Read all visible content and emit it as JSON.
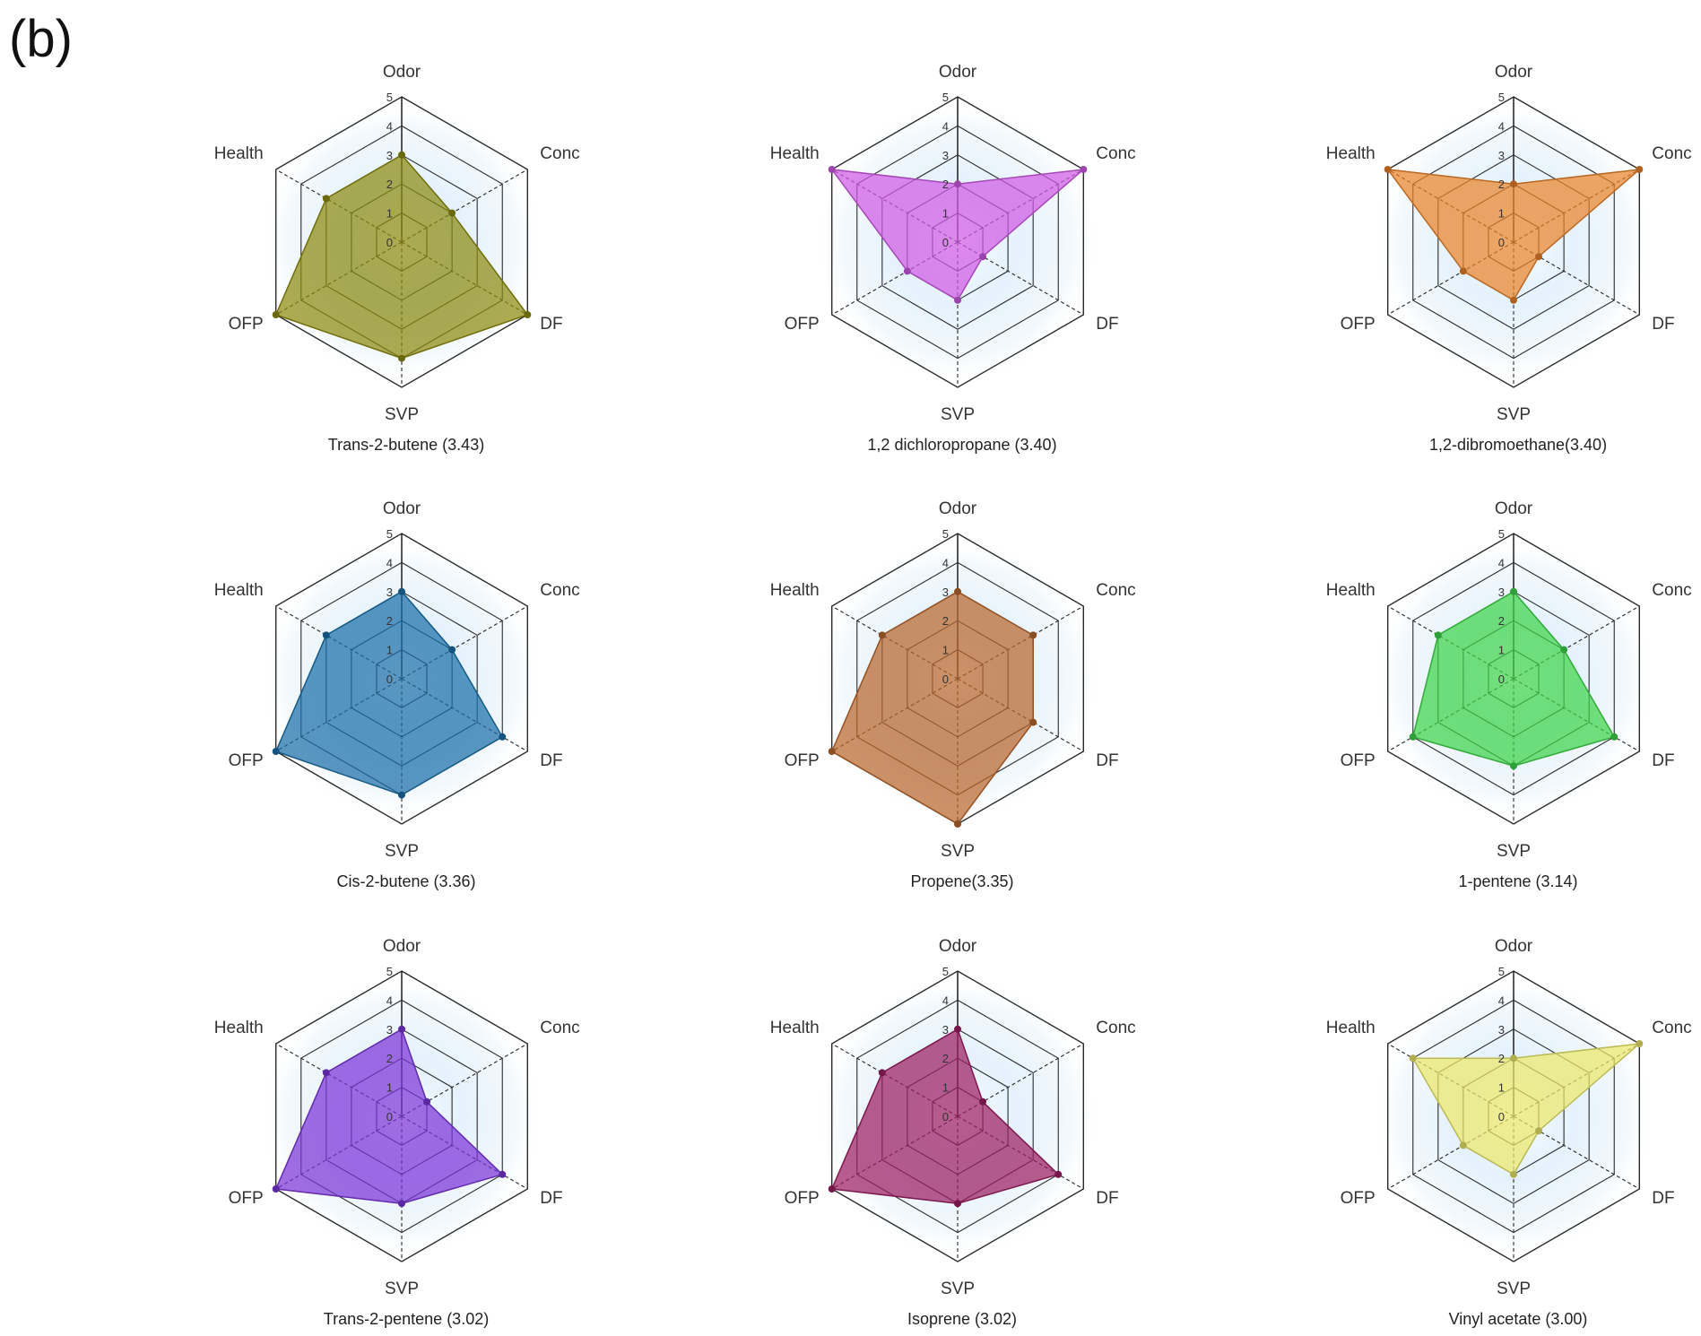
{
  "panel_label": "(b)",
  "chart_data": [
    {
      "type": "radar",
      "caption": "Trans-2-butene (3.43)",
      "axes": [
        "Odor",
        "Conc",
        "DF",
        "SVP",
        "OFP",
        "Health"
      ],
      "ticks": [
        "0",
        "1",
        "2",
        "3",
        "4",
        "5"
      ],
      "range": [
        0,
        5
      ],
      "values": [
        3,
        2,
        5,
        4,
        5,
        3
      ],
      "color": "#8c8a0f"
    },
    {
      "type": "radar",
      "caption": "1,2 dichloropropane (3.40)",
      "axes": [
        "Odor",
        "Conc",
        "DF",
        "SVP",
        "OFP",
        "Health"
      ],
      "ticks": [
        "0",
        "1",
        "2",
        "3",
        "4",
        "5"
      ],
      "range": [
        0,
        5
      ],
      "values": [
        2,
        5,
        1,
        2,
        2,
        5
      ],
      "color": "#d05ae6"
    },
    {
      "type": "radar",
      "caption": "1,2-dibromoethane(3.40)",
      "axes": [
        "Odor",
        "Conc",
        "DF",
        "SVP",
        "OFP",
        "Health"
      ],
      "ticks": [
        "0",
        "1",
        "2",
        "3",
        "4",
        "5"
      ],
      "range": [
        0,
        5
      ],
      "values": [
        2,
        5,
        1,
        2,
        2,
        5
      ],
      "color": "#e9832a"
    },
    {
      "type": "radar",
      "caption": "Cis-2-butene (3.36)",
      "axes": [
        "Odor",
        "Conc",
        "DF",
        "SVP",
        "OFP",
        "Health"
      ],
      "ticks": [
        "0",
        "1",
        "2",
        "3",
        "4",
        "5"
      ],
      "range": [
        0,
        5
      ],
      "values": [
        3,
        2,
        4,
        4,
        5,
        3
      ],
      "color": "#1a6fa8"
    },
    {
      "type": "radar",
      "caption": "Propene(3.35)",
      "axes": [
        "Odor",
        "Conc",
        "DF",
        "SVP",
        "OFP",
        "Health"
      ],
      "ticks": [
        "0",
        "1",
        "2",
        "3",
        "4",
        "5"
      ],
      "range": [
        0,
        5
      ],
      "values": [
        3,
        3,
        3,
        5,
        5,
        3
      ],
      "color": "#b9672d"
    },
    {
      "type": "radar",
      "caption": "1-pentene (3.14)",
      "axes": [
        "Odor",
        "Conc",
        "DF",
        "SVP",
        "OFP",
        "Health"
      ],
      "ticks": [
        "0",
        "1",
        "2",
        "3",
        "4",
        "5"
      ],
      "range": [
        0,
        5
      ],
      "values": [
        3,
        2,
        4,
        3,
        4,
        3
      ],
      "color": "#3ed449"
    },
    {
      "type": "radar",
      "caption": "Trans-2-pentene (3.02)",
      "axes": [
        "Odor",
        "Conc",
        "DF",
        "SVP",
        "OFP",
        "Health"
      ],
      "ticks": [
        "0",
        "1",
        "2",
        "3",
        "4",
        "5"
      ],
      "range": [
        0,
        5
      ],
      "values": [
        3,
        1,
        4,
        3,
        5,
        3
      ],
      "color": "#7b34d8"
    },
    {
      "type": "radar",
      "caption": "Isoprene (3.02)",
      "axes": [
        "Odor",
        "Conc",
        "DF",
        "SVP",
        "OFP",
        "Health"
      ],
      "ticks": [
        "0",
        "1",
        "2",
        "3",
        "4",
        "5"
      ],
      "range": [
        0,
        5
      ],
      "values": [
        3,
        1,
        4,
        3,
        5,
        3
      ],
      "color": "#9c1f63"
    },
    {
      "type": "radar",
      "caption": "Vinyl acetate (3.00)",
      "axes": [
        "Odor",
        "Conc",
        "DF",
        "SVP",
        "OFP",
        "Health"
      ],
      "ticks": [
        "0",
        "1",
        "2",
        "3",
        "4",
        "5"
      ],
      "range": [
        0,
        5
      ],
      "values": [
        2,
        5,
        1,
        2,
        2,
        4
      ],
      "color": "#ebe86a"
    }
  ]
}
